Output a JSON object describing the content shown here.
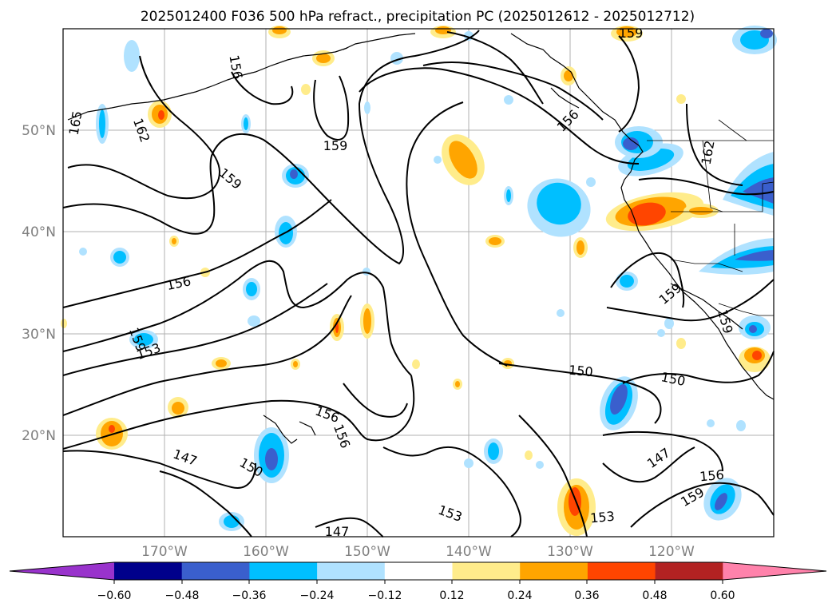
{
  "title": "2025012400 F036 500 hPa refract., precipitation PC (2025012612 - 2025012712)",
  "axes": {
    "lat_ticks": [
      "20°N",
      "30°N",
      "40°N",
      "50°N"
    ],
    "lon_ticks": [
      "170°W",
      "160°W",
      "150°W",
      "140°W",
      "130°W",
      "120°W"
    ]
  },
  "colorbar": {
    "colors": [
      "#9933cc",
      "#00008b",
      "#3a5fcd",
      "#00bfff",
      "#b0e2ff",
      "#ffffff",
      "#ffec8b",
      "#ffa500",
      "#ff4500",
      "#b22222",
      "#ff82ab"
    ],
    "tick_labels": [
      "−0.60",
      "−0.48",
      "−0.36",
      "−0.24",
      "−0.12",
      "0.12",
      "0.24",
      "0.36",
      "0.48",
      "0.60"
    ]
  },
  "contour_labels": [
    "165",
    "162",
    "159",
    "156",
    "153",
    "150",
    "147",
    "159",
    "156",
    "156",
    "156",
    "150",
    "147",
    "153",
    "153",
    "150",
    "147",
    "156",
    "159",
    "159",
    "159",
    "162",
    "156",
    "159",
    "159"
  ]
}
